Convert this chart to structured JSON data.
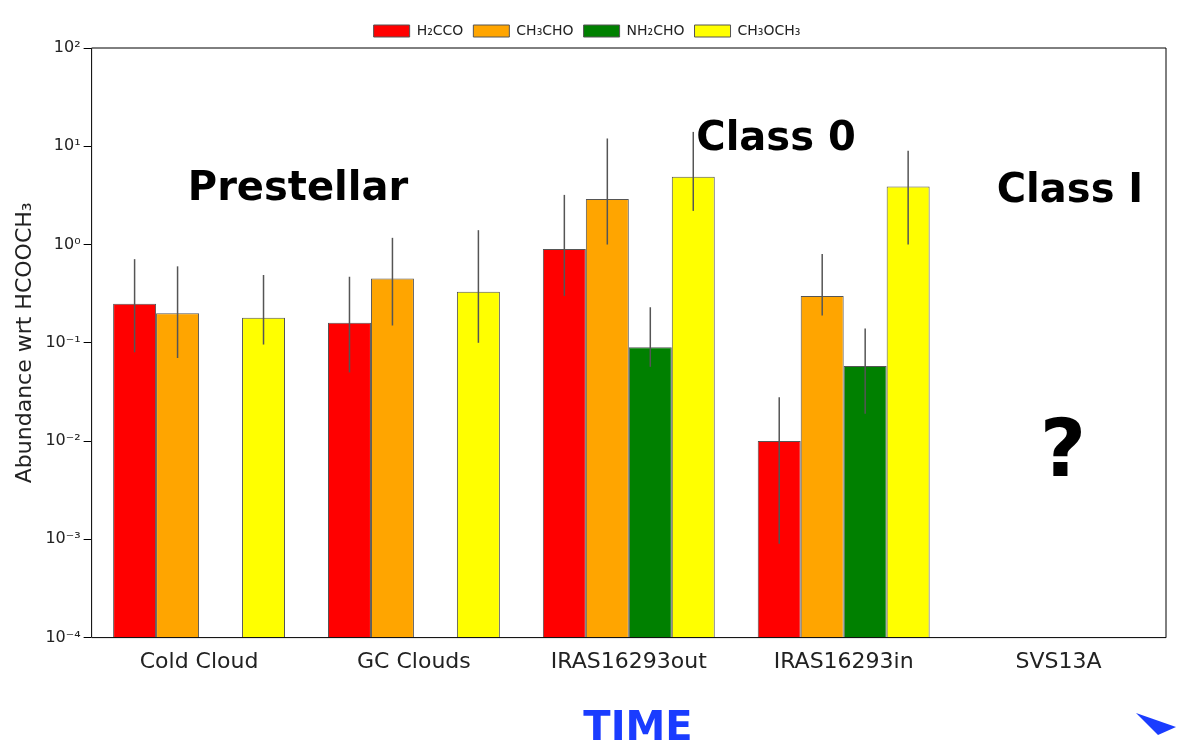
{
  "chart_data": {
    "type": "bar",
    "ylabel": "Abundance wrt HCOOCH₃",
    "categories": [
      "Cold Cloud",
      "GC Clouds",
      "IRAS16293out",
      "IRAS16293in",
      "SVS13A"
    ],
    "series": [
      {
        "name": "H₂CCO",
        "color": "#ff0000",
        "values": [
          0.25,
          0.16,
          0.9,
          0.01,
          null
        ],
        "errors": [
          [
            0.08,
            0.71
          ],
          [
            0.05,
            0.47
          ],
          [
            0.3,
            3.2
          ],
          [
            0.0009,
            0.028
          ],
          null
        ]
      },
      {
        "name": "CH₃CHO",
        "color": "#ffa500",
        "values": [
          0.2,
          0.45,
          2.9,
          0.3,
          null
        ],
        "errors": [
          [
            0.07,
            0.6
          ],
          [
            0.15,
            1.17
          ],
          [
            1.0,
            12
          ],
          [
            0.19,
            0.8
          ],
          null
        ]
      },
      {
        "name": "NH₂CHO",
        "color": "#008000",
        "values": [
          null,
          null,
          0.09,
          0.058,
          null
        ],
        "errors": [
          null,
          null,
          [
            0.057,
            0.23
          ],
          [
            0.019,
            0.14
          ],
          null
        ]
      },
      {
        "name": "CH₃OCH₃",
        "color": "#ffff00",
        "values": [
          0.18,
          0.33,
          4.9,
          3.9,
          null
        ],
        "errors": [
          [
            0.096,
            0.49
          ],
          [
            0.1,
            1.4
          ],
          [
            2.2,
            14
          ],
          [
            1.0,
            9
          ],
          null
        ]
      }
    ],
    "log": "y",
    "ylim": [
      0.0001,
      100
    ],
    "yticks": [
      {
        "value": 0.0001,
        "label": "10⁻⁴"
      },
      {
        "value": 0.001,
        "label": "10⁻³"
      },
      {
        "value": 0.01,
        "label": "10⁻²"
      },
      {
        "value": 0.1,
        "label": "10⁻¹"
      },
      {
        "value": 1,
        "label": "10⁰"
      },
      {
        "value": 10,
        "label": "10¹"
      },
      {
        "value": 100,
        "label": "10²"
      }
    ],
    "grid": false,
    "legend": "top",
    "annotations": [
      "Prestellar",
      "Class 0",
      "Class I",
      "?",
      "TIME"
    ]
  }
}
